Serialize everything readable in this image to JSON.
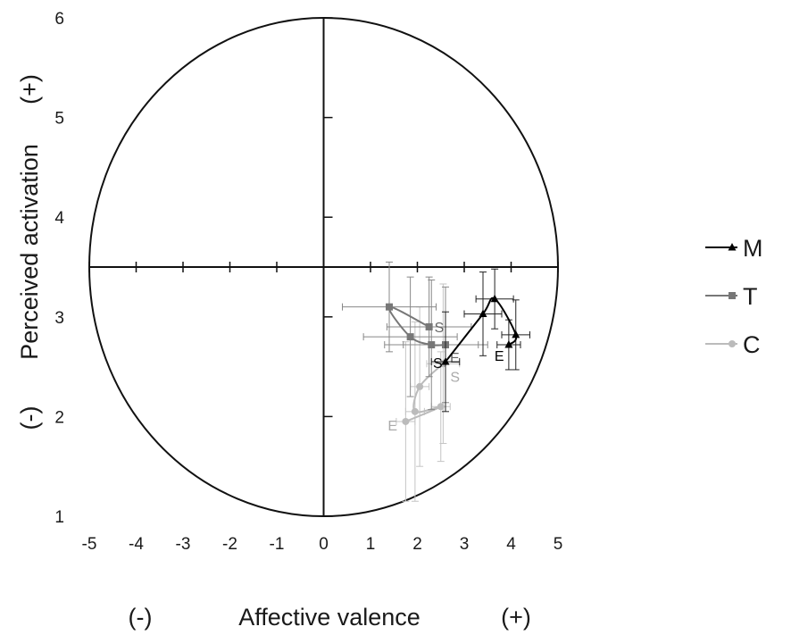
{
  "chart_data": {
    "type": "line",
    "xlabel": {
      "neg": "(-)",
      "title": "Affective valence",
      "pos": "(+)"
    },
    "ylabel": {
      "neg": "(-)",
      "title": "Perceived activation",
      "pos": "(+)"
    },
    "xlim": [
      -5,
      5
    ],
    "ylim": [
      1,
      6
    ],
    "x_ticks": [
      -5,
      -4,
      -3,
      -2,
      -1,
      0,
      1,
      2,
      3,
      4,
      5
    ],
    "y_ticks": [
      1,
      2,
      3,
      4,
      5,
      6
    ],
    "circle": {
      "center": [
        0,
        3.5
      ],
      "rx": 5,
      "ry": 2.5
    },
    "legend_position": "right",
    "series": [
      {
        "name": "M",
        "marker": "triangle",
        "color": "#000000",
        "points": [
          {
            "x": 2.6,
            "y": 2.55,
            "xerr": 0.3,
            "yerr": 0.5,
            "label": "S"
          },
          {
            "x": 3.4,
            "y": 3.03,
            "xerr": 0.4,
            "yerr": 0.42
          },
          {
            "x": 3.65,
            "y": 3.18,
            "xerr": 0.4,
            "yerr": 0.3
          },
          {
            "x": 4.1,
            "y": 2.82,
            "xerr": 0.3,
            "yerr": 0.35
          },
          {
            "x": 3.95,
            "y": 2.72,
            "xerr": 0.25,
            "yerr": 0.25,
            "label": "E"
          }
        ]
      },
      {
        "name": "T",
        "marker": "square",
        "color": "#777777",
        "points": [
          {
            "x": 2.25,
            "y": 2.9,
            "xerr": 0.9,
            "yerr": 0.5,
            "label": "S"
          },
          {
            "x": 1.4,
            "y": 3.1,
            "xerr": 1.0,
            "yerr": 0.45
          },
          {
            "x": 1.85,
            "y": 2.8,
            "xerr": 1.0,
            "yerr": 0.6
          },
          {
            "x": 2.3,
            "y": 2.72,
            "xerr": 1.0,
            "yerr": 0.65
          },
          {
            "x": 2.6,
            "y": 2.72,
            "xerr": 0.9,
            "yerr": 0.58,
            "label": "E"
          }
        ]
      },
      {
        "name": "C",
        "marker": "circle",
        "color": "#bbbbbb",
        "points": [
          {
            "x": 2.55,
            "y": 2.53,
            "xerr": 0.35,
            "yerr": 0.8,
            "label": "S"
          },
          {
            "x": 2.05,
            "y": 2.3,
            "xerr": 0.2,
            "yerr": 0.8
          },
          {
            "x": 1.95,
            "y": 2.05,
            "xerr": 0.2,
            "yerr": 0.9
          },
          {
            "x": 2.5,
            "y": 2.1,
            "xerr": 0.2,
            "yerr": 0.55
          },
          {
            "x": 1.75,
            "y": 1.95,
            "xerr": 0.2,
            "yerr": 0.8,
            "label": "E"
          }
        ]
      }
    ]
  }
}
